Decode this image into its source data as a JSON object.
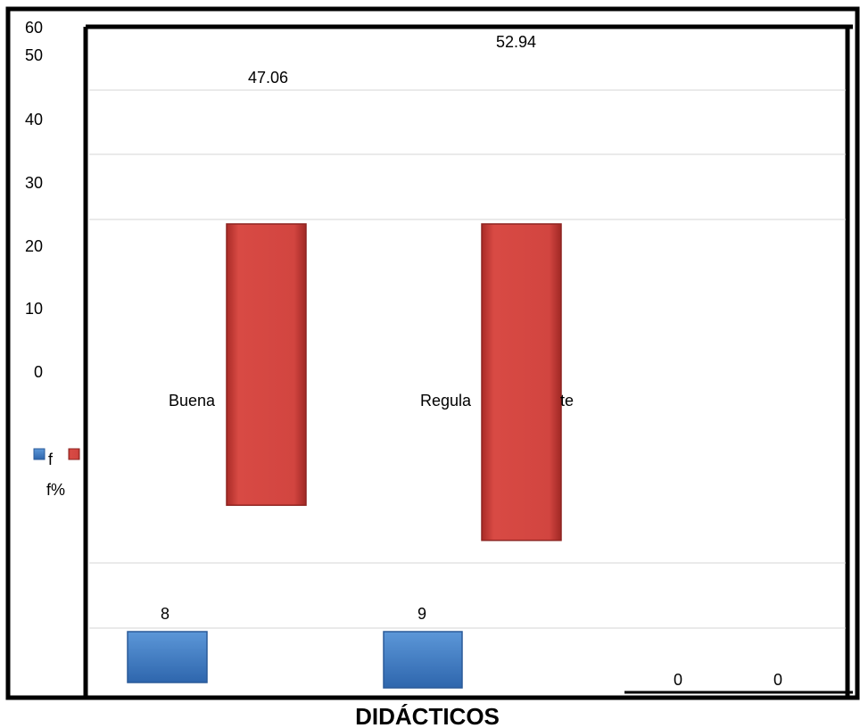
{
  "chart_data": {
    "type": "bar",
    "title": "DIDÁCTICOS",
    "categories": [
      "Buena",
      "Regular",
      "Deficiente"
    ],
    "category_labels_visible": [
      "Buena",
      "Regula",
      "te"
    ],
    "series": [
      {
        "name": "f",
        "values": [
          8,
          9,
          0
        ],
        "labels": [
          "8",
          "9",
          "0"
        ]
      },
      {
        "name": "f%",
        "values": [
          47.06,
          52.94,
          0
        ],
        "labels": [
          "47.06",
          "52.94",
          "0"
        ]
      }
    ],
    "y_ticks": [
      "60",
      "50",
      "40",
      "30",
      "20",
      "10",
      "0"
    ],
    "ylim": [
      0,
      60
    ],
    "grid": true,
    "legend": "left",
    "colors": {
      "f": "#3a78c3",
      "f%": "#c6403a"
    }
  }
}
